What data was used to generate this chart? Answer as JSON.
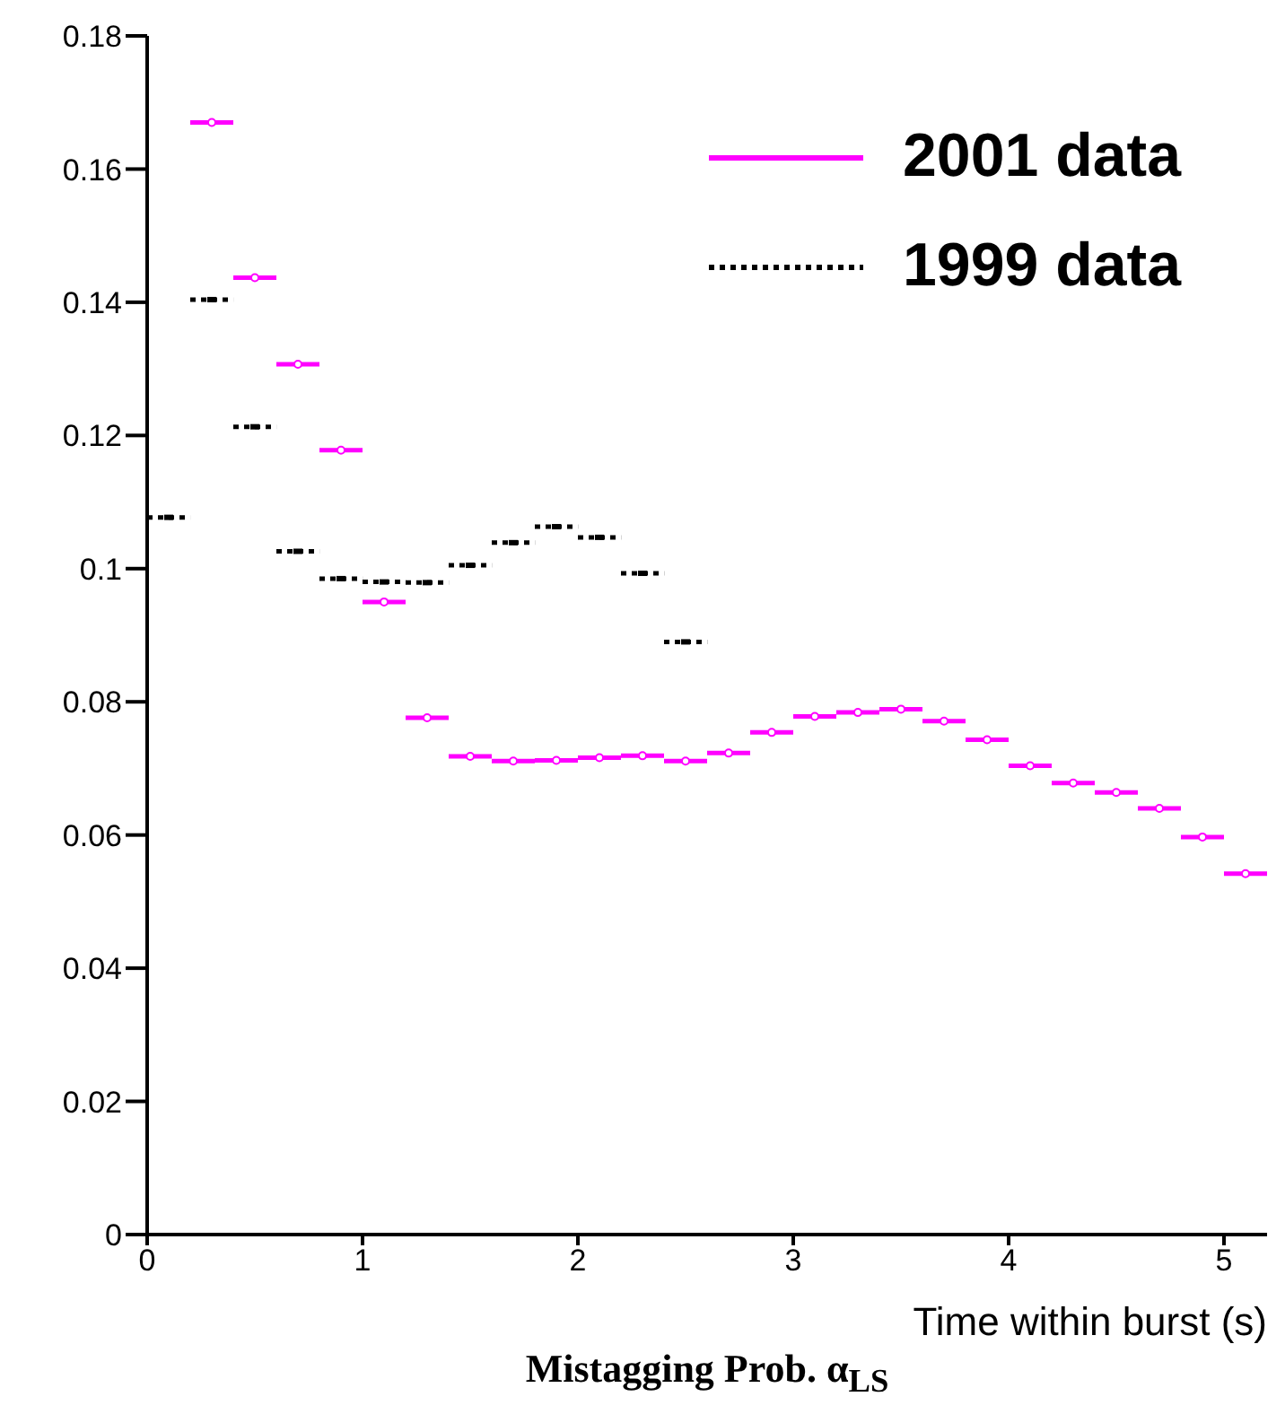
{
  "chart_data": {
    "type": "scatter",
    "title": "Mistagging Prob. α$_{LS}$",
    "xlabel": "Time within burst (s)",
    "xlim": [
      0,
      5.2
    ],
    "xticks": [
      0,
      1,
      2,
      3,
      4,
      5
    ],
    "ylim": [
      0,
      0.18
    ],
    "yticks": [
      0,
      0.02,
      0.04,
      0.06,
      0.08,
      0.1,
      0.12,
      0.14,
      0.16,
      0.18
    ],
    "legend": "top right",
    "series": [
      {
        "name": "2001 data",
        "color": "#ff00ff",
        "line_style": "solid",
        "marker": "circle",
        "x": [
          0.3,
          0.5,
          0.7,
          0.9,
          1.1,
          1.3,
          1.5,
          1.7,
          1.9,
          2.1,
          2.3,
          2.5,
          2.7,
          2.9,
          3.1,
          3.3,
          3.5,
          3.7,
          3.9,
          4.1,
          4.3,
          4.5,
          4.7,
          4.9,
          5.1
        ],
        "values": [
          0.167,
          0.1437,
          0.1307,
          0.1178,
          0.095,
          0.0776,
          0.0718,
          0.0711,
          0.0712,
          0.0716,
          0.0719,
          0.0711,
          0.0723,
          0.0754,
          0.0778,
          0.0784,
          0.0789,
          0.0771,
          0.0743,
          0.0704,
          0.0678,
          0.0664,
          0.064,
          0.0597,
          0.0542
        ],
        "xerrors": [
          0.1,
          0.1,
          0.1,
          0.1,
          0.1,
          0.1,
          0.1,
          0.1,
          0.1,
          0.1,
          0.1,
          0.1,
          0.1,
          0.1,
          0.1,
          0.1,
          0.1,
          0.1,
          0.1,
          0.1,
          0.1,
          0.1,
          0.1,
          0.1,
          0.1
        ]
      },
      {
        "name": "1999 data",
        "color": "#000000",
        "line_style": "dotted",
        "marker": "square",
        "x": [
          0.1,
          0.3,
          0.5,
          0.7,
          0.9,
          1.1,
          1.3,
          1.5,
          1.7,
          1.9,
          2.1,
          2.3,
          2.5
        ],
        "values": [
          0.1077,
          0.1404,
          0.1213,
          0.1026,
          0.0985,
          0.098,
          0.0979,
          0.1005,
          0.1039,
          0.1063,
          0.1047,
          0.0993,
          0.089
        ],
        "xerrors": [
          0.1,
          0.1,
          0.1,
          0.1,
          0.1,
          0.1,
          0.1,
          0.1,
          0.1,
          0.1,
          0.1,
          0.1,
          0.1
        ]
      }
    ]
  }
}
